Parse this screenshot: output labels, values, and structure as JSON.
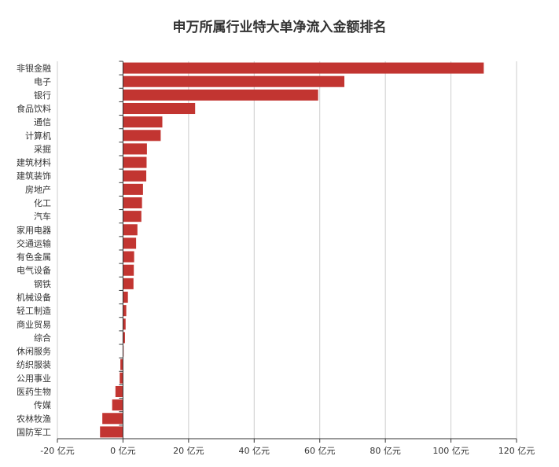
{
  "chart_data": {
    "type": "bar",
    "orientation": "horizontal",
    "title": "申万所属行业特大单净流入金额排名",
    "xlabel": "",
    "ylabel": "",
    "categories": [
      "非银金融",
      "电子",
      "银行",
      "食品饮料",
      "通信",
      "计算机",
      "采掘",
      "建筑材料",
      "建筑装饰",
      "房地产",
      "化工",
      "汽车",
      "家用电器",
      "交通运输",
      "有色金属",
      "电气设备",
      "钢铁",
      "机械设备",
      "轻工制造",
      "商业贸易",
      "综合",
      "休闲服务",
      "纺织服装",
      "公用事业",
      "医药生物",
      "传媒",
      "农林牧渔",
      "国防军工"
    ],
    "values": [
      110,
      67.5,
      59.5,
      22,
      12,
      11.5,
      7.3,
      7.2,
      7.1,
      6.1,
      5.8,
      5.6,
      4.4,
      4.0,
      3.4,
      3.3,
      3.2,
      1.5,
      1.0,
      0.8,
      0.6,
      0.1,
      -0.8,
      -1.0,
      -2.3,
      -3.3,
      -6.3,
      -7.0
    ],
    "xlim": [
      -20,
      120
    ],
    "xticks": [
      -20,
      0,
      20,
      40,
      60,
      80,
      100,
      120
    ],
    "tick_suffix": " 亿元",
    "grid": true,
    "legend": "none",
    "bar_color": "#c23531"
  }
}
